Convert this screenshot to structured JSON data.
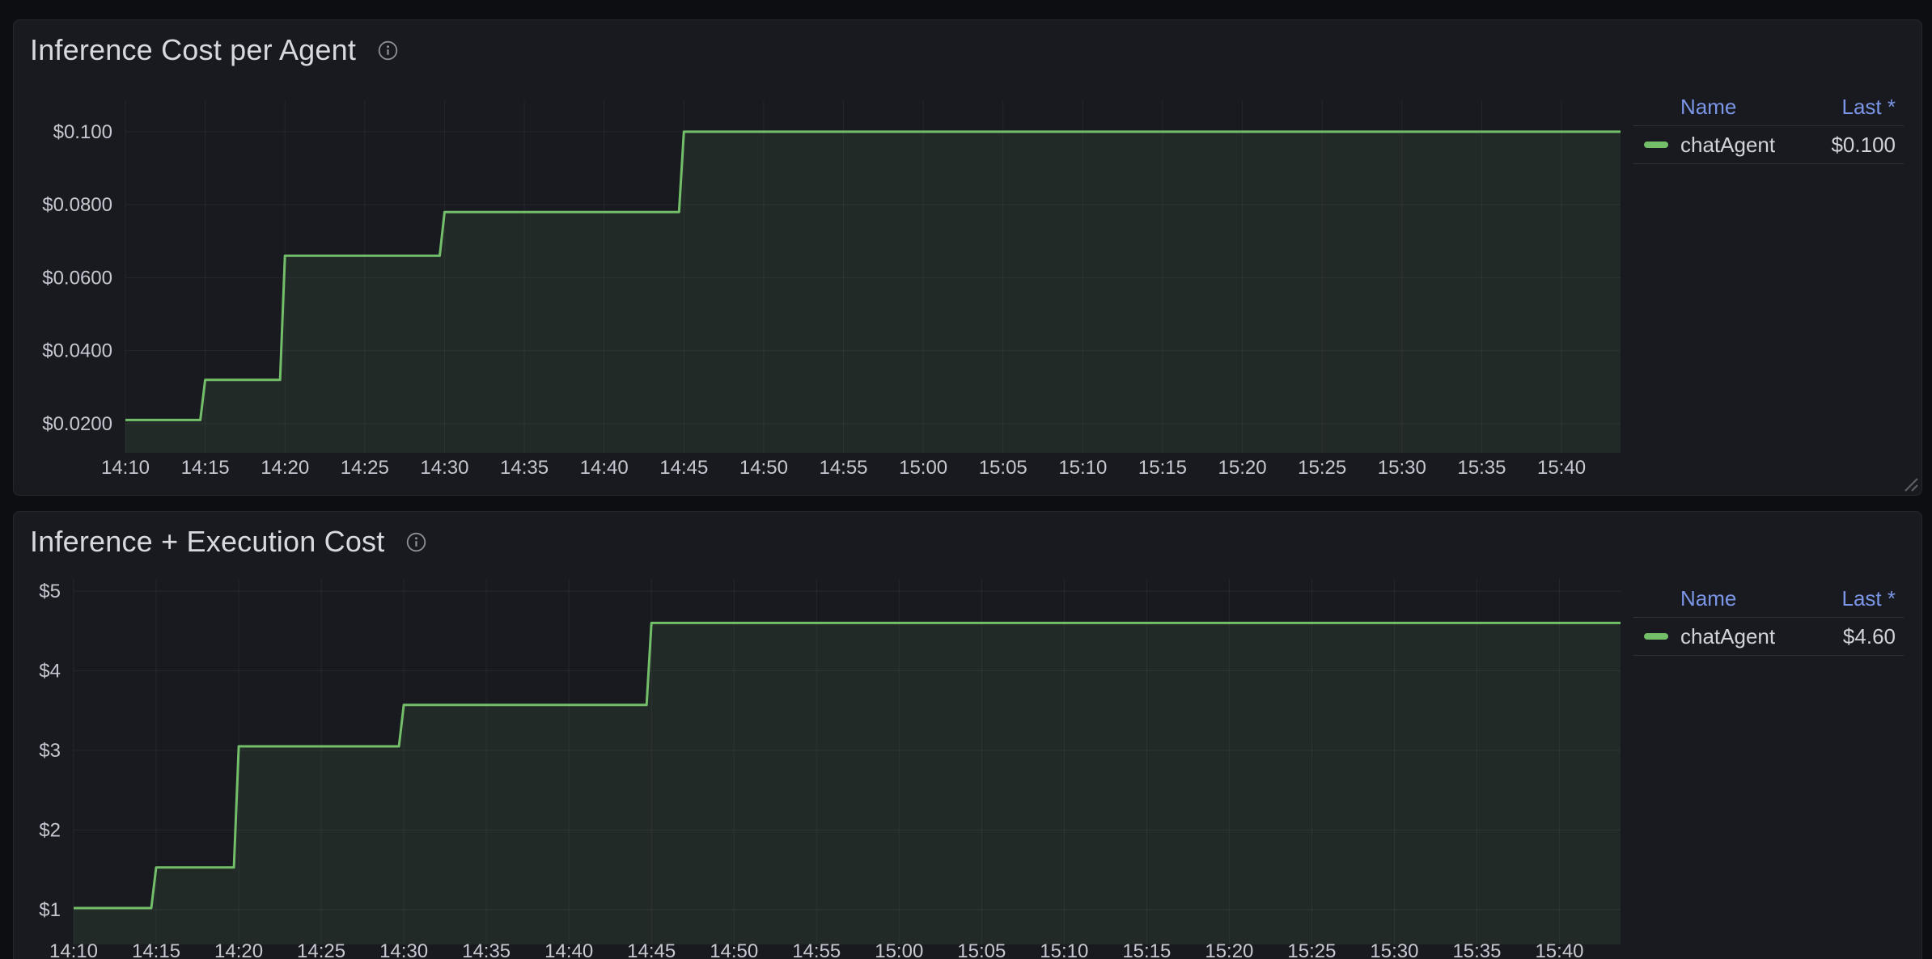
{
  "app": {
    "canvas_bg": "#0d0e12",
    "panel_bg": "#191a20",
    "panel_border": "#25272e",
    "series_green": "#73bf69",
    "legend_link_blue": "#7b96e6",
    "grid_color": "rgba(204,204,220,0.07)",
    "tick_text_color": "#c6c7d1"
  },
  "panels": [
    {
      "title": "Inference Cost per Agent",
      "info_icon": "info-circle-icon",
      "legend": {
        "name_header": "Name",
        "last_header": "Last *",
        "rows": [
          {
            "label": "chatAgent",
            "last": "$0.100",
            "color": "#73bf69"
          }
        ]
      }
    },
    {
      "title": "Inference + Execution Cost",
      "info_icon": "info-circle-icon",
      "legend": {
        "name_header": "Name",
        "last_header": "Last *",
        "rows": [
          {
            "label": "chatAgent",
            "last": "$4.60",
            "color": "#73bf69"
          }
        ]
      }
    }
  ],
  "chart_data": [
    {
      "type": "line",
      "step": true,
      "title": "Inference Cost per Agent",
      "xlabel": "",
      "ylabel": "",
      "grid": true,
      "legend_position": "right",
      "x_ticks": {
        "labels": [
          "14:10",
          "14:15",
          "14:20",
          "14:25",
          "14:30",
          "14:35",
          "14:40",
          "14:45",
          "14:50",
          "14:55",
          "15:00",
          "15:05",
          "15:10",
          "15:15",
          "15:20",
          "15:25",
          "15:30",
          "15:35",
          "15:40"
        ],
        "start_minute": 0,
        "step_minute": 5
      },
      "y_ticks": {
        "labels": [
          "$0.0200",
          "$0.0400",
          "$0.0600",
          "$0.0800",
          "$0.100"
        ],
        "values": [
          0.02,
          0.04,
          0.06,
          0.08,
          0.1
        ]
      },
      "xlim_minutes": [
        0,
        93.7
      ],
      "ylim": [
        0.012,
        0.1084
      ],
      "series": [
        {
          "name": "chatAgent",
          "color": "#73bf69",
          "fill_color": "rgba(115,191,105,0.10)",
          "points_time_value": [
            [
              "14:10",
              0.021
            ],
            [
              "14:15",
              0.032
            ],
            [
              "14:20",
              0.066
            ],
            [
              "14:30",
              0.078
            ],
            [
              "14:45",
              0.1
            ]
          ],
          "last_label": "$0.100"
        }
      ]
    },
    {
      "type": "line",
      "step": true,
      "title": "Inference + Execution Cost",
      "xlabel": "",
      "ylabel": "",
      "grid": true,
      "legend_position": "right",
      "x_ticks": {
        "labels": [
          "14:10",
          "14:15",
          "14:20",
          "14:25",
          "14:30",
          "14:35",
          "14:40",
          "14:45",
          "14:50",
          "14:55",
          "15:00",
          "15:05",
          "15:10",
          "15:15",
          "15:20",
          "15:25",
          "15:30",
          "15:35",
          "15:40"
        ],
        "start_minute": 0,
        "step_minute": 5
      },
      "y_ticks": {
        "labels": [
          "$1",
          "$2",
          "$3",
          "$4",
          "$5"
        ],
        "values": [
          1,
          2,
          3,
          4,
          5
        ]
      },
      "xlim_minutes": [
        0,
        93.7
      ],
      "ylim": [
        0.563,
        5.152
      ],
      "series": [
        {
          "name": "chatAgent",
          "color": "#73bf69",
          "fill_color": "rgba(115,191,105,0.10)",
          "points_time_value": [
            [
              "14:10",
              1.02
            ],
            [
              "14:15",
              1.53
            ],
            [
              "14:20",
              3.05
            ],
            [
              "14:30",
              3.57
            ],
            [
              "14:45",
              4.6
            ]
          ],
          "last_label": "$4.60"
        }
      ]
    }
  ]
}
